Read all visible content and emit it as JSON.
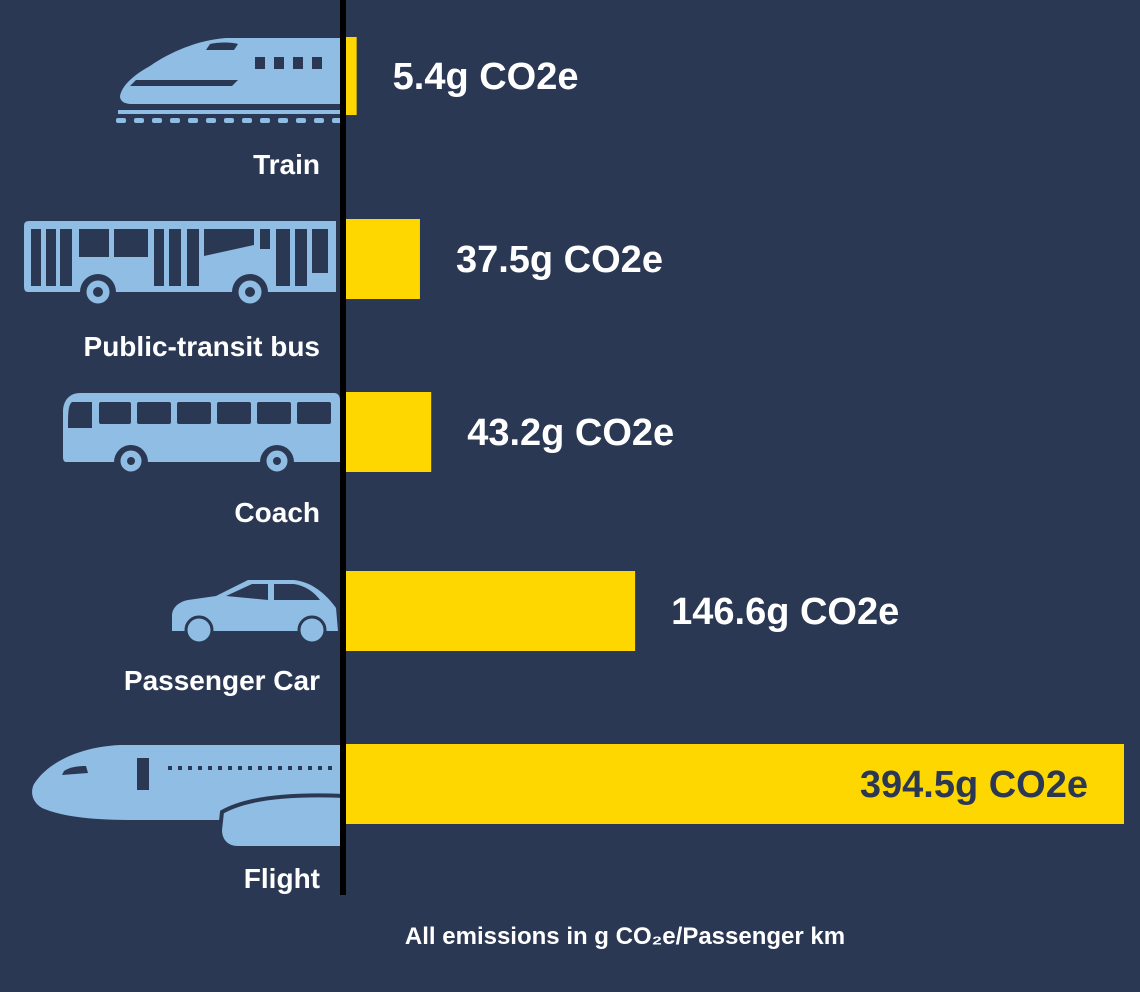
{
  "chart_data": {
    "type": "bar",
    "orientation": "horizontal",
    "categories": [
      "Train",
      "Public-transit bus",
      "Coach",
      "Passenger Car",
      "Flight"
    ],
    "values": [
      5.4,
      37.5,
      43.2,
      146.6,
      394.5
    ],
    "value_labels": [
      "5.4g CO2e",
      "37.5g CO2e",
      "43.2g CO2e",
      "146.6g CO2e",
      "394.5g CO2e"
    ],
    "unit_note": "All emissions in g CO₂e/Passenger km",
    "icons": [
      "train-icon",
      "bus-icon",
      "coach-icon",
      "car-icon",
      "plane-icon"
    ],
    "colors": {
      "background": "#2b3854",
      "bar": "#ffd700",
      "icon": "#8fbde3",
      "axis": "#000000",
      "text": "#ffffff",
      "inner_label": "#2b3854"
    }
  }
}
